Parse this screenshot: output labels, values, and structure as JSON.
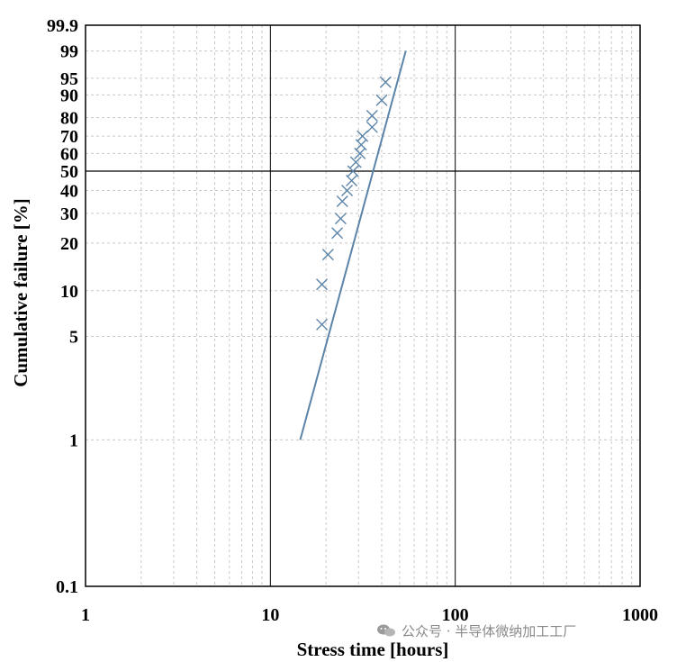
{
  "chart_data": {
    "type": "scatter",
    "x_scale": "log",
    "y_scale": "weibull",
    "xlabel": "Stress time [hours]",
    "ylabel": "Cumulative failure [%]",
    "xlim": [
      1,
      1000
    ],
    "ylim": [
      0.1,
      99.9
    ],
    "x_ticks": [
      {
        "value": 1,
        "label": "1"
      },
      {
        "value": 10,
        "label": "10"
      },
      {
        "value": 100,
        "label": "100"
      },
      {
        "value": 1000,
        "label": "1000"
      }
    ],
    "y_ticks": [
      {
        "value": 0.1,
        "label": "0.1"
      },
      {
        "value": 1,
        "label": "1"
      },
      {
        "value": 5,
        "label": "5"
      },
      {
        "value": 10,
        "label": "10"
      },
      {
        "value": 20,
        "label": "20"
      },
      {
        "value": 30,
        "label": "30"
      },
      {
        "value": 40,
        "label": "40"
      },
      {
        "value": 50,
        "label": "50"
      },
      {
        "value": 60,
        "label": "60"
      },
      {
        "value": 70,
        "label": "70"
      },
      {
        "value": 80,
        "label": "80"
      },
      {
        "value": 90,
        "label": "90"
      },
      {
        "value": 95,
        "label": "95"
      },
      {
        "value": 99,
        "label": "99"
      },
      {
        "value": 99.9,
        "label": "99.9"
      }
    ],
    "reference_line_y": 50,
    "grid": true,
    "fit_line": {
      "x": [
        14.5,
        54
      ],
      "y": [
        1,
        99
      ]
    },
    "points": [
      {
        "x": 19.0,
        "y": 6
      },
      {
        "x": 19.0,
        "y": 11
      },
      {
        "x": 20.5,
        "y": 17
      },
      {
        "x": 23.0,
        "y": 23
      },
      {
        "x": 24.0,
        "y": 28
      },
      {
        "x": 24.5,
        "y": 35
      },
      {
        "x": 26.0,
        "y": 40
      },
      {
        "x": 27.5,
        "y": 45
      },
      {
        "x": 28.0,
        "y": 50
      },
      {
        "x": 29.0,
        "y": 55
      },
      {
        "x": 30.5,
        "y": 60
      },
      {
        "x": 31.0,
        "y": 65
      },
      {
        "x": 31.5,
        "y": 70
      },
      {
        "x": 35.5,
        "y": 75
      },
      {
        "x": 35.5,
        "y": 81
      },
      {
        "x": 40.0,
        "y": 88
      },
      {
        "x": 42.0,
        "y": 94
      }
    ],
    "colors": {
      "series": "#5b84a8",
      "axis": "#000000",
      "grid": "#c8c8c8"
    }
  },
  "watermark": "公众号 · 半导体微纳加工工厂"
}
